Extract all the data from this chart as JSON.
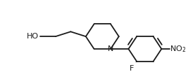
{
  "background_color": "#ffffff",
  "line_color": "#1a1a1a",
  "line_width": 1.3,
  "font_size_labels": 8.0,
  "fig_width": 2.67,
  "fig_height": 1.03,
  "dpi": 100,
  "xlim": [
    0,
    267
  ],
  "ylim": [
    0,
    103
  ]
}
